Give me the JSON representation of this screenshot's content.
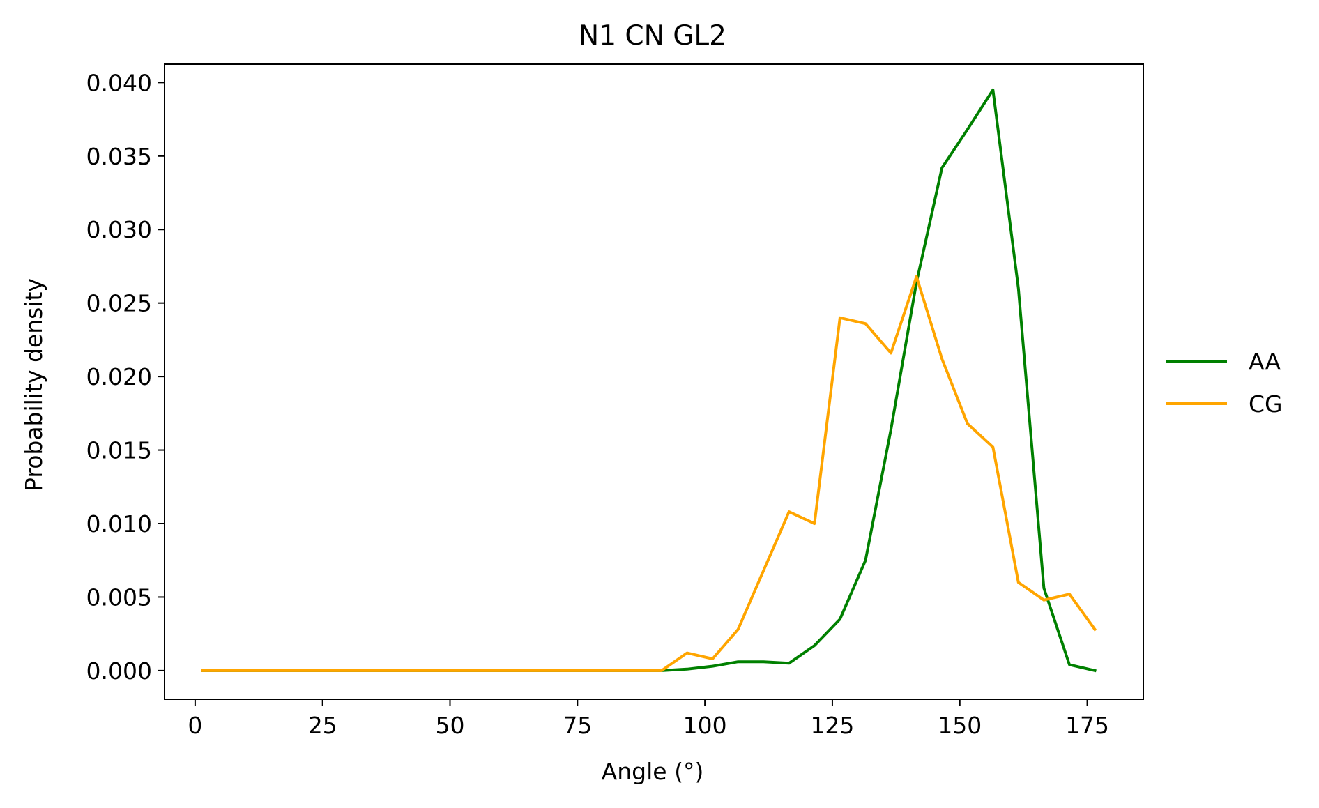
{
  "chart_data": {
    "type": "line",
    "title": "N1 CN GL2",
    "xlabel": "Angle (°)",
    "ylabel": "Probability density",
    "xlim": [
      -6,
      186
    ],
    "ylim": [
      -0.00195,
      0.04125
    ],
    "xticks": [
      0,
      25,
      50,
      75,
      100,
      125,
      150,
      175
    ],
    "xtick_labels": [
      "0",
      "25",
      "50",
      "75",
      "100",
      "125",
      "150",
      "175"
    ],
    "yticks": [
      0.0,
      0.005,
      0.01,
      0.015,
      0.02,
      0.025,
      0.03,
      0.035,
      0.04
    ],
    "ytick_labels": [
      "0.000",
      "0.005",
      "0.010",
      "0.015",
      "0.020",
      "0.025",
      "0.030",
      "0.035",
      "0.040"
    ],
    "grid": false,
    "legend_position": "right",
    "x": [
      1.5,
      6.5,
      11.5,
      16.5,
      21.5,
      26.5,
      31.5,
      36.5,
      41.5,
      46.5,
      51.5,
      56.5,
      61.5,
      66.5,
      71.5,
      76.5,
      81.5,
      86.5,
      91.5,
      96.5,
      101.5,
      106.5,
      111.5,
      116.5,
      121.5,
      126.5,
      131.5,
      136.5,
      141.5,
      146.5,
      151.5,
      156.5,
      161.5,
      166.5,
      171.5,
      176.5
    ],
    "series": [
      {
        "name": "AA",
        "color": "#008000",
        "values": [
          0,
          0,
          0,
          0,
          0,
          0,
          0,
          0,
          0,
          0,
          0,
          0,
          0,
          0,
          0,
          0,
          0,
          0,
          0,
          0.0001,
          0.0003,
          0.0006,
          0.0006,
          0.0005,
          0.0017,
          0.0035,
          0.0075,
          0.0164,
          0.0264,
          0.0342,
          0.0368,
          0.0395,
          0.026,
          0.0056,
          0.0004,
          0.0
        ]
      },
      {
        "name": "CG",
        "color": "#ffa500",
        "values": [
          0,
          0,
          0,
          0,
          0,
          0,
          0,
          0,
          0,
          0,
          0,
          0,
          0,
          0,
          0,
          0,
          0,
          0,
          0,
          0.0012,
          0.0008,
          0.0028,
          0.0068,
          0.0108,
          0.01,
          0.024,
          0.0236,
          0.0216,
          0.0268,
          0.0212,
          0.0168,
          0.0152,
          0.006,
          0.0048,
          0.0052,
          0.0028
        ]
      }
    ]
  }
}
